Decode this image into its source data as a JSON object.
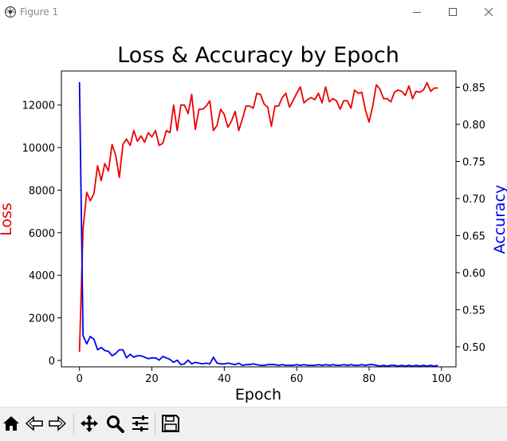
{
  "window": {
    "title": "Figure 1",
    "icons": {
      "app": "matplotlib-figure-icon",
      "minimize": "minimize-icon",
      "maximize": "maximize-icon",
      "close": "close-icon"
    }
  },
  "toolbar": {
    "buttons": [
      {
        "name": "home-button",
        "icon": "home-icon"
      },
      {
        "name": "back-button",
        "icon": "back-arrow-icon"
      },
      {
        "name": "forward-button",
        "icon": "forward-arrow-icon"
      },
      {
        "name": "pan-button",
        "icon": "move-arrows-icon"
      },
      {
        "name": "zoom-button",
        "icon": "magnifier-icon"
      },
      {
        "name": "configure-subplots-button",
        "icon": "sliders-icon"
      },
      {
        "name": "save-button",
        "icon": "floppy-disk-icon"
      }
    ]
  },
  "chart_data": {
    "type": "line",
    "title": "Loss & Accuracy by Epoch",
    "xlabel": "Epoch",
    "ylabel_left": "Loss",
    "ylabel_right": "Accuracy",
    "xlim": [
      -5,
      104
    ],
    "ylim_left": [
      -300,
      13600
    ],
    "ylim_right": [
      0.473,
      0.872
    ],
    "xticks": [
      0,
      20,
      40,
      60,
      80,
      100
    ],
    "yticks_left": [
      0,
      2000,
      4000,
      6000,
      8000,
      10000,
      12000
    ],
    "yticks_right": [
      0.5,
      0.55,
      0.6,
      0.65,
      0.7,
      0.75,
      0.8,
      0.85
    ],
    "grid": false,
    "colors": {
      "loss": "#ee0000",
      "accuracy": "#0000ee"
    },
    "series": [
      {
        "axis": "left",
        "color": "#ee0000",
        "x": [
          0,
          1,
          2,
          3,
          4,
          5,
          6,
          7,
          8,
          9,
          10,
          11,
          12,
          13,
          14,
          15,
          16,
          17,
          18,
          19,
          20,
          21,
          22,
          23,
          24,
          25,
          26,
          27,
          28,
          29,
          30,
          31,
          32,
          33,
          34,
          35,
          36,
          37,
          38,
          39,
          40,
          41,
          42,
          43,
          44,
          45,
          46,
          47,
          48,
          49,
          50,
          51,
          52,
          53,
          54,
          55,
          56,
          57,
          58,
          59,
          60,
          61,
          62,
          63,
          64,
          65,
          66,
          67,
          68,
          69,
          70,
          71,
          72,
          73,
          74,
          75,
          76,
          77,
          78,
          79,
          80,
          81,
          82,
          83,
          84,
          85,
          86,
          87,
          88,
          89,
          90,
          91,
          92,
          93,
          94,
          95,
          96,
          97,
          98,
          99
        ],
        "values": [
          400,
          6200,
          7900,
          7500,
          7850,
          9150,
          8450,
          9250,
          8900,
          10150,
          9650,
          8600,
          10150,
          10400,
          10100,
          10800,
          10300,
          10550,
          10250,
          10700,
          10500,
          10800,
          10100,
          10200,
          10800,
          10700,
          12000,
          10800,
          12000,
          12000,
          11600,
          12500,
          10850,
          11800,
          11800,
          11950,
          12200,
          10800,
          11050,
          11800,
          11550,
          10950,
          11250,
          11700,
          10800,
          11350,
          11950,
          11950,
          11850,
          12550,
          12500,
          12050,
          11900,
          11000,
          11950,
          11950,
          12350,
          12550,
          11900,
          12200,
          12550,
          12850,
          12100,
          12250,
          12350,
          12250,
          12550,
          12100,
          12850,
          12150,
          12300,
          12200,
          11800,
          12200,
          12200,
          11850,
          12700,
          12550,
          12600,
          11750,
          11200,
          11950,
          12950,
          12750,
          12300,
          12300,
          12150,
          12600,
          12700,
          12650,
          12450,
          12900,
          12300,
          12650,
          12600,
          12700,
          13050,
          12650,
          12800,
          12800
        ]
      },
      {
        "axis": "right",
        "color": "#0000ee",
        "x": [
          0,
          1,
          2,
          3,
          4,
          5,
          6,
          7,
          8,
          9,
          10,
          11,
          12,
          13,
          14,
          15,
          16,
          17,
          18,
          19,
          20,
          21,
          22,
          23,
          24,
          25,
          26,
          27,
          28,
          29,
          30,
          31,
          32,
          33,
          34,
          35,
          36,
          37,
          38,
          39,
          40,
          41,
          42,
          43,
          44,
          45,
          46,
          47,
          48,
          49,
          50,
          51,
          52,
          53,
          54,
          55,
          56,
          57,
          58,
          59,
          60,
          61,
          62,
          63,
          64,
          65,
          66,
          67,
          68,
          69,
          70,
          71,
          72,
          73,
          74,
          75,
          76,
          77,
          78,
          79,
          80,
          81,
          82,
          83,
          84,
          85,
          86,
          87,
          88,
          89,
          90,
          91,
          92,
          93,
          94,
          95,
          96,
          97,
          98,
          99
        ],
        "values": [
          0.857,
          0.515,
          0.504,
          0.514,
          0.51,
          0.496,
          0.499,
          0.495,
          0.494,
          0.488,
          0.491,
          0.496,
          0.496,
          0.485,
          0.49,
          0.486,
          0.488,
          0.488,
          0.486,
          0.484,
          0.485,
          0.485,
          0.482,
          0.487,
          0.485,
          0.483,
          0.479,
          0.482,
          0.476,
          0.477,
          0.482,
          0.477,
          0.479,
          0.478,
          0.477,
          0.478,
          0.477,
          0.486,
          0.478,
          0.477,
          0.477,
          0.478,
          0.477,
          0.476,
          0.478,
          0.475,
          0.476,
          0.476,
          0.477,
          0.476,
          0.475,
          0.475,
          0.476,
          0.476,
          0.476,
          0.475,
          0.476,
          0.475,
          0.475,
          0.475,
          0.476,
          0.475,
          0.476,
          0.475,
          0.475,
          0.475,
          0.476,
          0.475,
          0.476,
          0.475,
          0.476,
          0.475,
          0.475,
          0.476,
          0.475,
          0.476,
          0.475,
          0.475,
          0.476,
          0.475,
          0.476,
          0.476,
          0.475,
          0.474,
          0.475,
          0.474,
          0.475,
          0.475,
          0.474,
          0.475,
          0.474,
          0.475,
          0.474,
          0.475,
          0.474,
          0.475,
          0.474,
          0.475,
          0.474,
          0.475
        ]
      }
    ]
  }
}
